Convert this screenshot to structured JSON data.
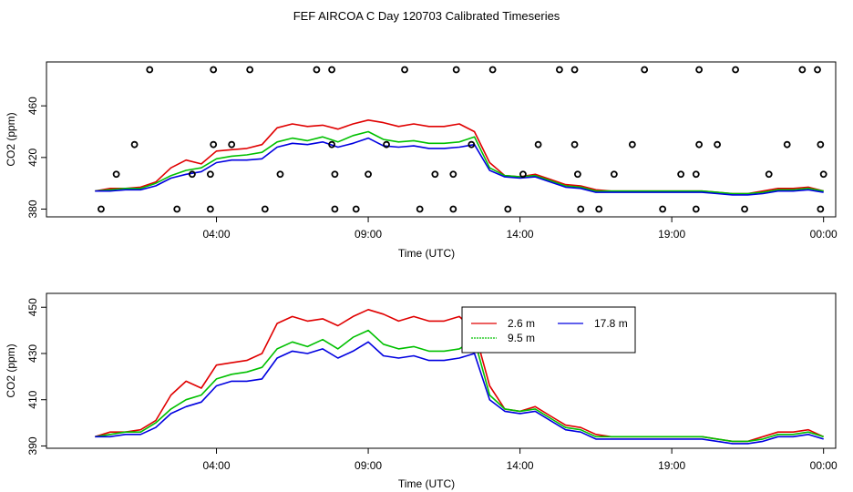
{
  "title": "FEF AIRCOA C  Day 120703  Calibrated Timeseries",
  "colors": {
    "s2_6": "#e00000",
    "s9_5": "#00c000",
    "s17_8": "#0000e0",
    "axis": "#000000",
    "flags": "#000000"
  },
  "chart_data": [
    {
      "type": "line",
      "title": "FEF AIRCOA C  Day 120703  Calibrated Timeseries",
      "xlabel": "Time (UTC)",
      "ylabel": "CO2 (ppm)",
      "xlim": [
        -1.6,
        24.4
      ],
      "ylim": [
        374,
        494
      ],
      "xticks": [
        4,
        9,
        14,
        19,
        24
      ],
      "xtick_labels": [
        "04:00",
        "09:00",
        "14:00",
        "19:00",
        "00:00"
      ],
      "yticks": [
        380,
        420,
        460
      ],
      "ytick_labels": [
        "380",
        "420",
        "460"
      ],
      "x": [
        0,
        0.5,
        1,
        1.5,
        2,
        2.5,
        3,
        3.5,
        4,
        4.5,
        5,
        5.5,
        6,
        6.5,
        7,
        7.5,
        8,
        8.5,
        9,
        9.5,
        10,
        10.5,
        11,
        11.5,
        12,
        12.5,
        13,
        13.5,
        14,
        14.5,
        15,
        15.5,
        16,
        16.5,
        17,
        17.5,
        18,
        18.5,
        19,
        19.5,
        20,
        20.5,
        21,
        21.5,
        22,
        22.5,
        23,
        23.5,
        24
      ],
      "series": [
        {
          "name": "2.6 m",
          "values": [
            394,
            396,
            396,
            397,
            401,
            412,
            418,
            415,
            425,
            426,
            427,
            430,
            443,
            446,
            444,
            445,
            442,
            446,
            449,
            447,
            444,
            446,
            444,
            444,
            446,
            440,
            416,
            406,
            405,
            407,
            403,
            399,
            398,
            395,
            394,
            394,
            394,
            394,
            394,
            394,
            394,
            393,
            392,
            392,
            394,
            396,
            396,
            397,
            394
          ]
        },
        {
          "name": "9.5 m",
          "values": [
            394,
            395,
            396,
            396,
            400,
            406,
            410,
            412,
            419,
            421,
            422,
            424,
            432,
            435,
            433,
            436,
            432,
            437,
            440,
            434,
            432,
            433,
            431,
            431,
            432,
            436,
            412,
            406,
            405,
            406,
            402,
            398,
            397,
            394,
            394,
            394,
            394,
            394,
            394,
            394,
            394,
            393,
            392,
            392,
            393,
            395,
            395,
            396,
            394
          ]
        },
        {
          "name": "17.8 m",
          "values": [
            394,
            394,
            395,
            395,
            398,
            404,
            407,
            409,
            416,
            418,
            418,
            419,
            428,
            431,
            430,
            432,
            428,
            431,
            435,
            429,
            428,
            429,
            427,
            427,
            428,
            430,
            410,
            405,
            404,
            405,
            401,
            397,
            396,
            393,
            393,
            393,
            393,
            393,
            393,
            393,
            393,
            392,
            391,
            391,
            392,
            394,
            394,
            395,
            393
          ]
        }
      ],
      "flag_points": [
        {
          "x": 0.2,
          "y": 380
        },
        {
          "x": 2.7,
          "y": 380
        },
        {
          "x": 3.8,
          "y": 380
        },
        {
          "x": 5.6,
          "y": 380
        },
        {
          "x": 7.9,
          "y": 380
        },
        {
          "x": 8.6,
          "y": 380
        },
        {
          "x": 10.7,
          "y": 380
        },
        {
          "x": 11.8,
          "y": 380
        },
        {
          "x": 13.6,
          "y": 380
        },
        {
          "x": 16.0,
          "y": 380
        },
        {
          "x": 16.6,
          "y": 380
        },
        {
          "x": 18.7,
          "y": 380
        },
        {
          "x": 19.8,
          "y": 380
        },
        {
          "x": 21.4,
          "y": 380
        },
        {
          "x": 23.9,
          "y": 380
        },
        {
          "x": 0.7,
          "y": 407
        },
        {
          "x": 3.2,
          "y": 407
        },
        {
          "x": 3.8,
          "y": 407
        },
        {
          "x": 6.1,
          "y": 407
        },
        {
          "x": 7.9,
          "y": 407
        },
        {
          "x": 9.0,
          "y": 407
        },
        {
          "x": 11.2,
          "y": 407
        },
        {
          "x": 11.8,
          "y": 407
        },
        {
          "x": 14.1,
          "y": 407
        },
        {
          "x": 15.9,
          "y": 407
        },
        {
          "x": 17.1,
          "y": 407
        },
        {
          "x": 19.3,
          "y": 407
        },
        {
          "x": 19.8,
          "y": 407
        },
        {
          "x": 22.2,
          "y": 407
        },
        {
          "x": 24.0,
          "y": 407
        },
        {
          "x": 1.3,
          "y": 430
        },
        {
          "x": 3.9,
          "y": 430
        },
        {
          "x": 4.5,
          "y": 430
        },
        {
          "x": 7.8,
          "y": 430
        },
        {
          "x": 9.6,
          "y": 430
        },
        {
          "x": 12.4,
          "y": 430
        },
        {
          "x": 14.6,
          "y": 430
        },
        {
          "x": 15.8,
          "y": 430
        },
        {
          "x": 17.7,
          "y": 430
        },
        {
          "x": 19.9,
          "y": 430
        },
        {
          "x": 20.5,
          "y": 430
        },
        {
          "x": 22.8,
          "y": 430
        },
        {
          "x": 23.9,
          "y": 430
        },
        {
          "x": 1.8,
          "y": 488
        },
        {
          "x": 3.9,
          "y": 488
        },
        {
          "x": 5.1,
          "y": 488
        },
        {
          "x": 7.3,
          "y": 488
        },
        {
          "x": 7.8,
          "y": 488
        },
        {
          "x": 10.2,
          "y": 488
        },
        {
          "x": 11.9,
          "y": 488
        },
        {
          "x": 13.1,
          "y": 488
        },
        {
          "x": 15.3,
          "y": 488
        },
        {
          "x": 15.8,
          "y": 488
        },
        {
          "x": 18.1,
          "y": 488
        },
        {
          "x": 19.9,
          "y": 488
        },
        {
          "x": 21.1,
          "y": 488
        },
        {
          "x": 23.3,
          "y": 488
        },
        {
          "x": 23.8,
          "y": 488
        }
      ]
    },
    {
      "type": "line",
      "xlabel": "Time (UTC)",
      "ylabel": "CO2 (ppm)",
      "xlim": [
        -1.6,
        24.4
      ],
      "ylim": [
        389,
        456
      ],
      "xticks": [
        4,
        9,
        14,
        19,
        24
      ],
      "xtick_labels": [
        "04:00",
        "09:00",
        "14:00",
        "19:00",
        "00:00"
      ],
      "yticks": [
        390,
        410,
        430,
        450
      ],
      "ytick_labels": [
        "390",
        "410",
        "430",
        "450"
      ],
      "legend": {
        "position": "top-center",
        "entries": [
          "2.6 m",
          "9.5 m",
          "17.8 m"
        ]
      },
      "x": [
        0,
        0.5,
        1,
        1.5,
        2,
        2.5,
        3,
        3.5,
        4,
        4.5,
        5,
        5.5,
        6,
        6.5,
        7,
        7.5,
        8,
        8.5,
        9,
        9.5,
        10,
        10.5,
        11,
        11.5,
        12,
        12.5,
        13,
        13.5,
        14,
        14.5,
        15,
        15.5,
        16,
        16.5,
        17,
        17.5,
        18,
        18.5,
        19,
        19.5,
        20,
        20.5,
        21,
        21.5,
        22,
        22.5,
        23,
        23.5,
        24
      ],
      "series": [
        {
          "name": "2.6 m",
          "values": [
            394,
            396,
            396,
            397,
            401,
            412,
            418,
            415,
            425,
            426,
            427,
            430,
            443,
            446,
            444,
            445,
            442,
            446,
            449,
            447,
            444,
            446,
            444,
            444,
            446,
            440,
            416,
            406,
            405,
            407,
            403,
            399,
            398,
            395,
            394,
            394,
            394,
            394,
            394,
            394,
            394,
            393,
            392,
            392,
            394,
            396,
            396,
            397,
            394
          ]
        },
        {
          "name": "9.5 m",
          "values": [
            394,
            395,
            396,
            396,
            400,
            406,
            410,
            412,
            419,
            421,
            422,
            424,
            432,
            435,
            433,
            436,
            432,
            437,
            440,
            434,
            432,
            433,
            431,
            431,
            432,
            436,
            412,
            406,
            405,
            406,
            402,
            398,
            397,
            394,
            394,
            394,
            394,
            394,
            394,
            394,
            394,
            393,
            392,
            392,
            393,
            395,
            395,
            396,
            394
          ]
        },
        {
          "name": "17.8 m",
          "values": [
            394,
            394,
            395,
            395,
            398,
            404,
            407,
            409,
            416,
            418,
            418,
            419,
            428,
            431,
            430,
            432,
            428,
            431,
            435,
            429,
            428,
            429,
            427,
            427,
            428,
            430,
            410,
            405,
            404,
            405,
            401,
            397,
            396,
            393,
            393,
            393,
            393,
            393,
            393,
            393,
            393,
            392,
            391,
            391,
            392,
            394,
            394,
            395,
            393
          ]
        }
      ]
    }
  ]
}
